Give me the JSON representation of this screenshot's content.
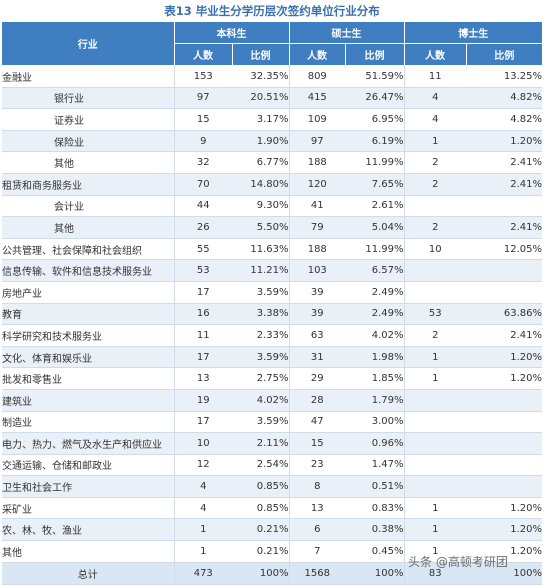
{
  "title": "表13  毕业生分学历层次签约单位行业分布",
  "header": {
    "industry": "行业",
    "groups": [
      "本科生",
      "硕士生",
      "博士生"
    ],
    "count": "人数",
    "ratio": "比例"
  },
  "rows": [
    {
      "name": "金融业",
      "sub": false,
      "b": [
        "153",
        "32.35%"
      ],
      "m": [
        "809",
        "51.59%"
      ],
      "d": [
        "11",
        "13.25%"
      ]
    },
    {
      "name": "银行业",
      "sub": true,
      "b": [
        "97",
        "20.51%"
      ],
      "m": [
        "415",
        "26.47%"
      ],
      "d": [
        "4",
        "4.82%"
      ]
    },
    {
      "name": "证券业",
      "sub": true,
      "b": [
        "15",
        "3.17%"
      ],
      "m": [
        "109",
        "6.95%"
      ],
      "d": [
        "4",
        "4.82%"
      ]
    },
    {
      "name": "保险业",
      "sub": true,
      "b": [
        "9",
        "1.90%"
      ],
      "m": [
        "97",
        "6.19%"
      ],
      "d": [
        "1",
        "1.20%"
      ]
    },
    {
      "name": "其他",
      "sub": true,
      "b": [
        "32",
        "6.77%"
      ],
      "m": [
        "188",
        "11.99%"
      ],
      "d": [
        "2",
        "2.41%"
      ]
    },
    {
      "name": "租赁和商务服务业",
      "sub": false,
      "b": [
        "70",
        "14.80%"
      ],
      "m": [
        "120",
        "7.65%"
      ],
      "d": [
        "2",
        "2.41%"
      ]
    },
    {
      "name": "会计业",
      "sub": true,
      "b": [
        "44",
        "9.30%"
      ],
      "m": [
        "41",
        "2.61%"
      ],
      "d": [
        "",
        ""
      ]
    },
    {
      "name": "其他",
      "sub": true,
      "b": [
        "26",
        "5.50%"
      ],
      "m": [
        "79",
        "5.04%"
      ],
      "d": [
        "2",
        "2.41%"
      ]
    },
    {
      "name": "公共管理、社会保障和社会组织",
      "sub": false,
      "b": [
        "55",
        "11.63%"
      ],
      "m": [
        "188",
        "11.99%"
      ],
      "d": [
        "10",
        "12.05%"
      ]
    },
    {
      "name": "信息传输、软件和信息技术服务业",
      "sub": false,
      "b": [
        "53",
        "11.21%"
      ],
      "m": [
        "103",
        "6.57%"
      ],
      "d": [
        "",
        ""
      ]
    },
    {
      "name": "房地产业",
      "sub": false,
      "b": [
        "17",
        "3.59%"
      ],
      "m": [
        "39",
        "2.49%"
      ],
      "d": [
        "",
        ""
      ]
    },
    {
      "name": "教育",
      "sub": false,
      "b": [
        "16",
        "3.38%"
      ],
      "m": [
        "39",
        "2.49%"
      ],
      "d": [
        "53",
        "63.86%"
      ]
    },
    {
      "name": "科学研究和技术服务业",
      "sub": false,
      "b": [
        "11",
        "2.33%"
      ],
      "m": [
        "63",
        "4.02%"
      ],
      "d": [
        "2",
        "2.41%"
      ]
    },
    {
      "name": "文化、体育和娱乐业",
      "sub": false,
      "b": [
        "17",
        "3.59%"
      ],
      "m": [
        "31",
        "1.98%"
      ],
      "d": [
        "1",
        "1.20%"
      ]
    },
    {
      "name": "批发和零售业",
      "sub": false,
      "b": [
        "13",
        "2.75%"
      ],
      "m": [
        "29",
        "1.85%"
      ],
      "d": [
        "1",
        "1.20%"
      ]
    },
    {
      "name": "建筑业",
      "sub": false,
      "b": [
        "19",
        "4.02%"
      ],
      "m": [
        "28",
        "1.79%"
      ],
      "d": [
        "",
        ""
      ]
    },
    {
      "name": "制造业",
      "sub": false,
      "b": [
        "17",
        "3.59%"
      ],
      "m": [
        "47",
        "3.00%"
      ],
      "d": [
        "",
        ""
      ]
    },
    {
      "name": "电力、热力、燃气及水生产和供应业",
      "sub": false,
      "b": [
        "10",
        "2.11%"
      ],
      "m": [
        "15",
        "0.96%"
      ],
      "d": [
        "",
        ""
      ]
    },
    {
      "name": "交通运输、仓储和邮政业",
      "sub": false,
      "b": [
        "12",
        "2.54%"
      ],
      "m": [
        "23",
        "1.47%"
      ],
      "d": [
        "",
        ""
      ]
    },
    {
      "name": "卫生和社会工作",
      "sub": false,
      "b": [
        "4",
        "0.85%"
      ],
      "m": [
        "8",
        "0.51%"
      ],
      "d": [
        "",
        ""
      ]
    },
    {
      "name": "采矿业",
      "sub": false,
      "b": [
        "4",
        "0.85%"
      ],
      "m": [
        "13",
        "0.83%"
      ],
      "d": [
        "1",
        "1.20%"
      ]
    },
    {
      "name": "农、林、牧、渔业",
      "sub": false,
      "b": [
        "1",
        "0.21%"
      ],
      "m": [
        "6",
        "0.38%"
      ],
      "d": [
        "1",
        "1.20%"
      ]
    },
    {
      "name": "其他",
      "sub": false,
      "b": [
        "1",
        "0.21%"
      ],
      "m": [
        "7",
        "0.45%"
      ],
      "d": [
        "1",
        "1.20%"
      ]
    }
  ],
  "total": {
    "name": "总计",
    "b": [
      "473",
      "100%"
    ],
    "m": [
      "1568",
      "100%"
    ],
    "d": [
      "83",
      "100%"
    ]
  },
  "watermark": "头条 @高顿考研团"
}
